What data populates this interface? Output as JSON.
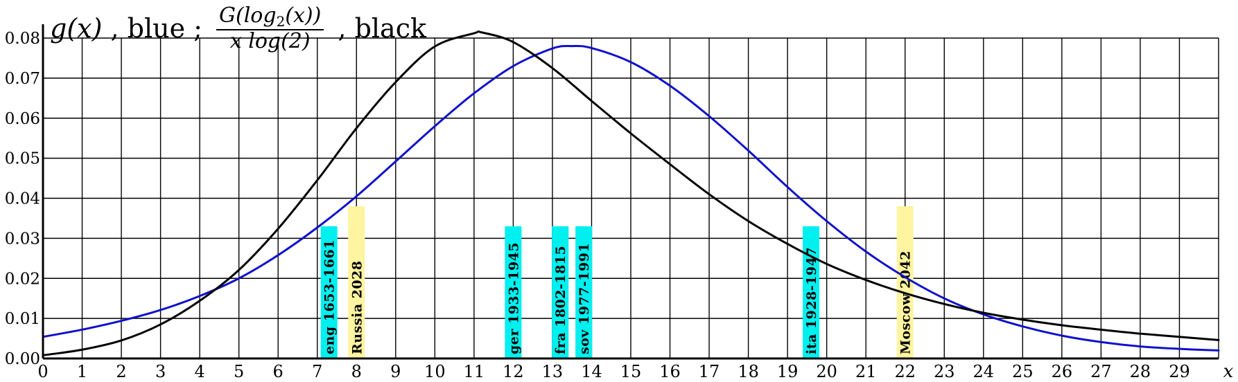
{
  "chart_data": {
    "type": "line",
    "title_parts": {
      "g": "g(x)",
      "sep1": " , blue ; ",
      "num_pre": "G(log",
      "num_sub": "2",
      "num_post": "(x))",
      "den": "x log(2)",
      "sep2": " , black"
    },
    "xlabel": "x",
    "xlim": [
      0,
      30
    ],
    "ylim": [
      0,
      0.08
    ],
    "x_ticks": [
      "0",
      "1",
      "2",
      "3",
      "4",
      "5",
      "6",
      "7",
      "8",
      "9",
      "10",
      "11",
      "12",
      "13",
      "14",
      "15",
      "16",
      "17",
      "18",
      "19",
      "20",
      "21",
      "22",
      "23",
      "24",
      "25",
      "26",
      "27",
      "28",
      "29"
    ],
    "y_ticks": [
      "0.00",
      "0.01",
      "0.02",
      "0.03",
      "0.04",
      "0.05",
      "0.06",
      "0.07",
      "0.08"
    ],
    "grid": true,
    "series": [
      {
        "color": "#1010cc",
        "x": [
          0,
          1,
          2,
          3,
          4,
          5,
          6,
          7,
          8,
          9,
          10,
          11,
          12,
          13,
          13.5,
          14,
          15,
          16,
          17,
          18,
          19,
          20,
          21,
          22,
          23,
          24,
          25,
          26,
          27,
          28,
          29,
          30
        ],
        "y": [
          0.0054,
          0.0072,
          0.0094,
          0.0121,
          0.0156,
          0.02,
          0.0258,
          0.0327,
          0.0405,
          0.0492,
          0.058,
          0.0662,
          0.073,
          0.0774,
          0.078,
          0.0775,
          0.074,
          0.0681,
          0.0605,
          0.0519,
          0.0428,
          0.0343,
          0.0267,
          0.0203,
          0.015,
          0.011,
          0.008,
          0.0057,
          0.0041,
          0.003,
          0.0024,
          0.002
        ]
      },
      {
        "color": "#000000",
        "x": [
          0,
          1,
          2,
          3,
          4,
          5,
          6,
          7,
          8,
          9,
          10,
          11,
          11.2,
          12,
          13,
          14,
          15,
          16,
          17,
          18,
          19,
          20,
          21,
          22,
          23,
          24,
          25,
          26,
          27,
          28,
          29,
          30
        ],
        "y": [
          0.0008,
          0.0022,
          0.0045,
          0.0085,
          0.0144,
          0.0221,
          0.0324,
          0.0445,
          0.0575,
          0.069,
          0.0779,
          0.0812,
          0.0814,
          0.079,
          0.0725,
          0.0643,
          0.0562,
          0.0485,
          0.041,
          0.0343,
          0.0286,
          0.0236,
          0.0196,
          0.0163,
          0.0136,
          0.0114,
          0.0097,
          0.0083,
          0.0072,
          0.0062,
          0.0054,
          0.0046
        ]
      }
    ],
    "annotations": [
      {
        "label": "eng 1653-1661",
        "x": 7.3,
        "height": 0.033,
        "color": "#00f0f0"
      },
      {
        "label": "Russia 2028",
        "x": 8.0,
        "height": 0.038,
        "color": "#fff4a0"
      },
      {
        "label": "ger 1933-1945",
        "x": 12.0,
        "height": 0.033,
        "color": "#00f0f0"
      },
      {
        "label": "fra 1802-1815",
        "x": 13.2,
        "height": 0.033,
        "color": "#00f0f0"
      },
      {
        "label": "sov 1977-1991",
        "x": 13.8,
        "height": 0.033,
        "color": "#00f0f0"
      },
      {
        "label": "ita 1928-1947",
        "x": 19.6,
        "height": 0.033,
        "color": "#00f0f0"
      },
      {
        "label": "Moscow 2042",
        "x": 22.0,
        "height": 0.038,
        "color": "#fff4a0"
      }
    ]
  }
}
